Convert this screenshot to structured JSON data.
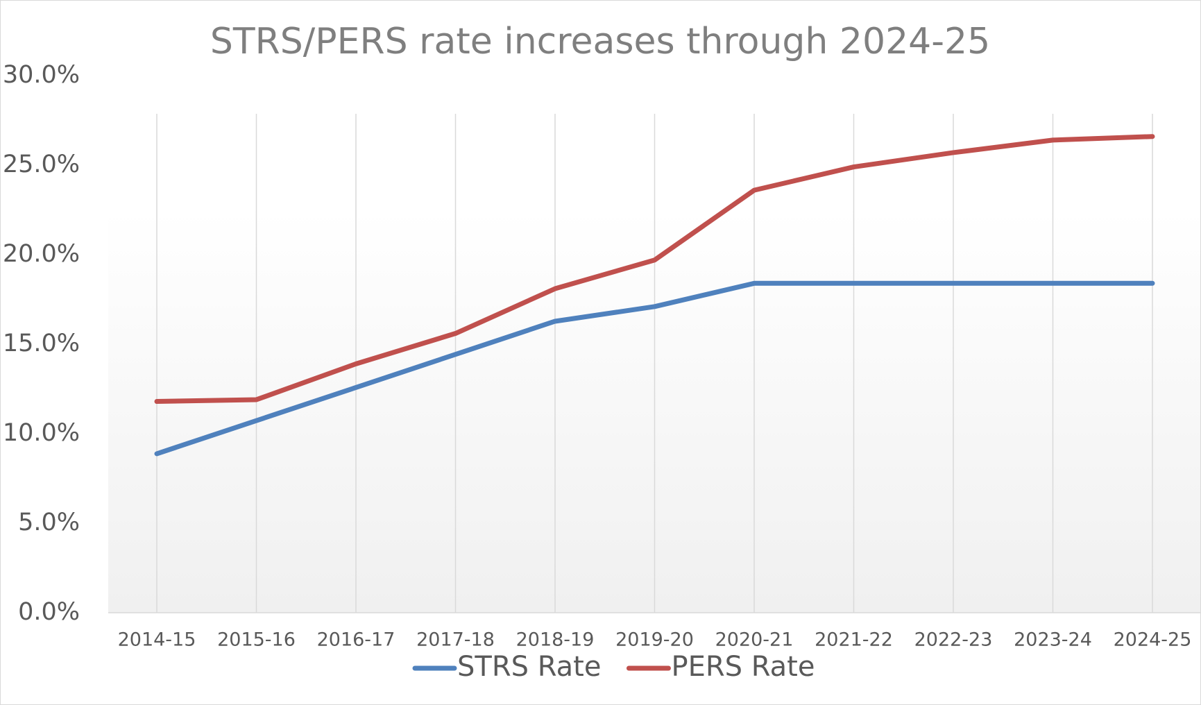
{
  "chart_data": {
    "type": "line",
    "title": "STRS/PERS rate increases through 2024-25",
    "categories": [
      "2014-15",
      "2015-16",
      "2016-17",
      "2017-18",
      "2018-19",
      "2019-20",
      "2020-21",
      "2021-22",
      "2022-23",
      "2023-24",
      "2024-25"
    ],
    "series": [
      {
        "name": "STRS Rate",
        "color": "#4f81bd",
        "values": [
          8.88,
          10.73,
          12.58,
          14.43,
          16.28,
          17.1,
          18.4,
          18.4,
          18.4,
          18.4,
          18.4
        ]
      },
      {
        "name": "PERS Rate",
        "color": "#c0504d",
        "values": [
          11.8,
          11.9,
          13.9,
          15.6,
          18.1,
          19.7,
          23.6,
          24.9,
          25.7,
          26.4,
          26.6
        ]
      }
    ],
    "ylim": [
      0,
      30
    ],
    "yticks": [
      {
        "value": 0,
        "label": "0.0%"
      },
      {
        "value": 5,
        "label": "5.0%"
      },
      {
        "value": 10,
        "label": "10.0%"
      },
      {
        "value": 15,
        "label": "15.0%"
      },
      {
        "value": 20,
        "label": "20.0%"
      },
      {
        "value": 25,
        "label": "25.0%"
      },
      {
        "value": 30,
        "label": "30.0%"
      }
    ],
    "grid": true,
    "legend": "bottom"
  }
}
